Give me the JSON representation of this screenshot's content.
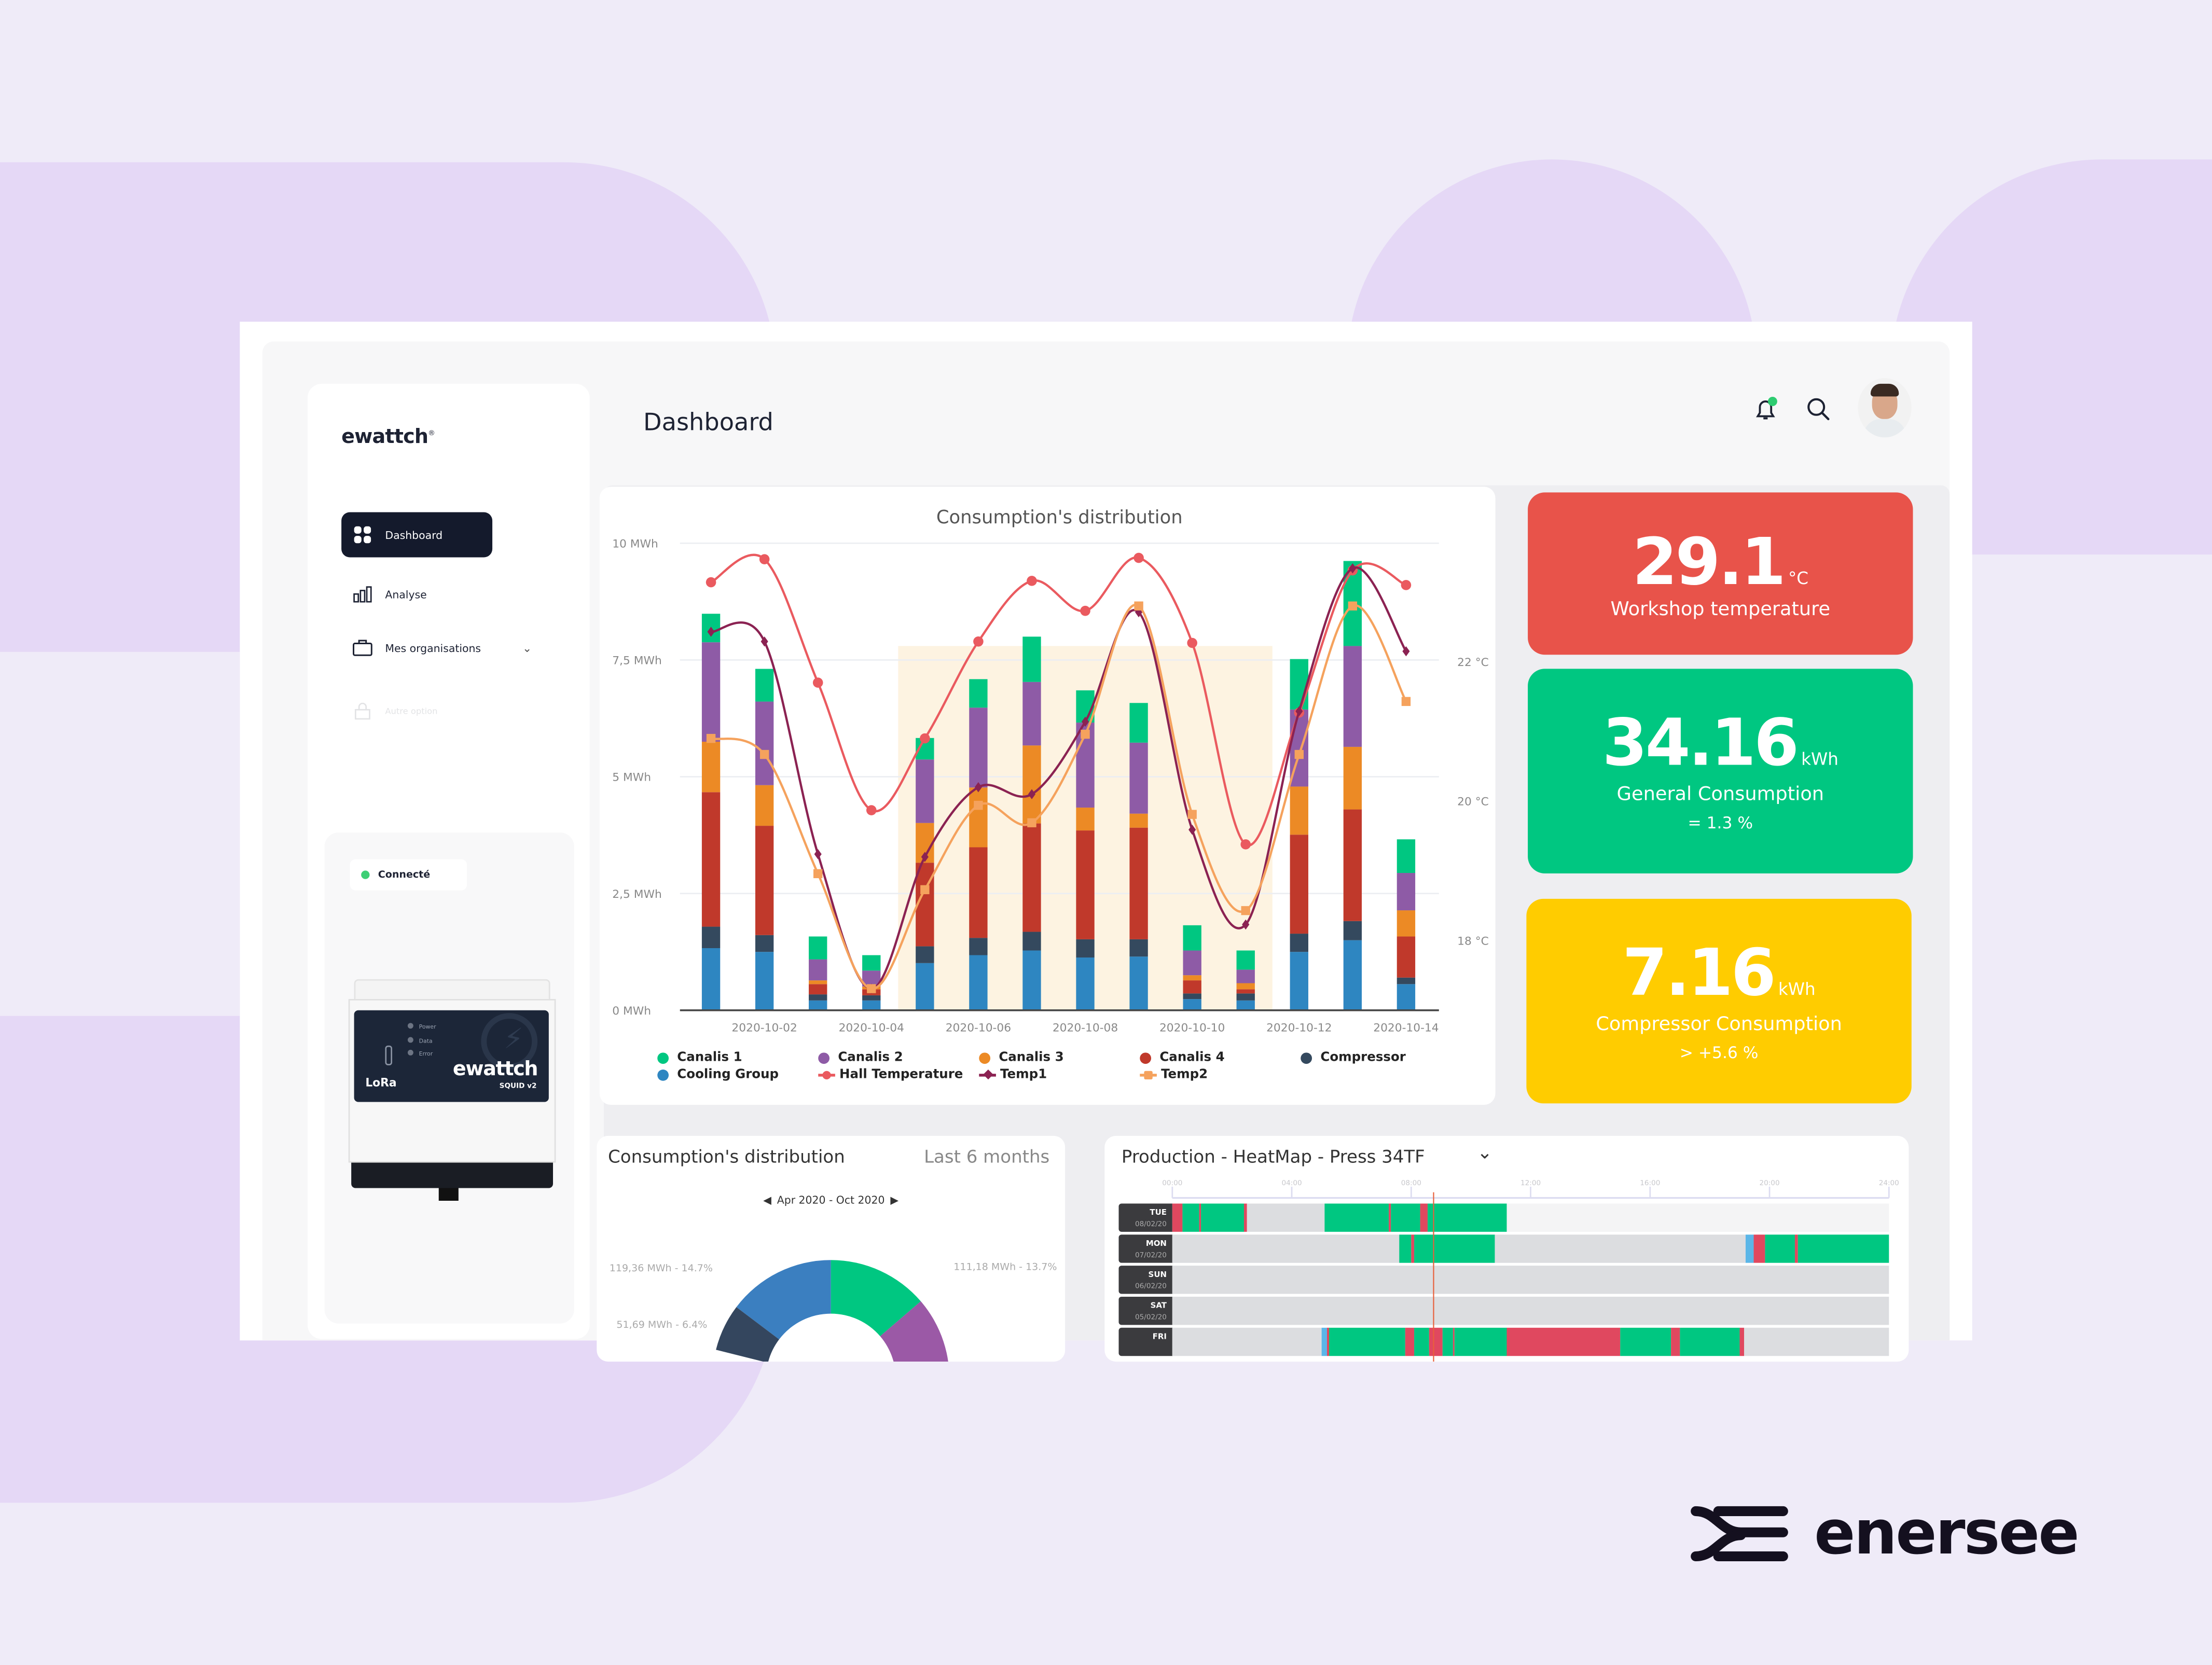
{
  "brand": {
    "name": "enersee"
  },
  "app": {
    "logo": "ewattch",
    "logo_mark": "®"
  },
  "header": {
    "title": "Dashboard",
    "icons": [
      "bell-icon",
      "search-icon",
      "avatar"
    ],
    "notification_dot_color": "#2ecc71"
  },
  "sidebar": {
    "items": [
      {
        "label": "Dashboard",
        "icon": "grid-icon",
        "active": true
      },
      {
        "label": "Analyse",
        "icon": "bar-chart-icon"
      },
      {
        "label": "Mes organisations",
        "icon": "briefcase-icon",
        "expandable": true
      },
      {
        "label": "Autre option",
        "icon": "lock-icon",
        "disabled": true
      }
    ],
    "status": "Connecté",
    "device": {
      "leds": [
        "Power",
        "Data",
        "Error"
      ],
      "brand": "ewattch",
      "model": "SQUID v2",
      "radio": "LoRa"
    }
  },
  "kpis": [
    {
      "value": "29.1",
      "unit": "°C",
      "label": "Workshop temperature",
      "change": "",
      "color": "#e8534a"
    },
    {
      "value": "34.16",
      "unit": "kWh",
      "label": "General Consumption",
      "change": "= 1.3 %",
      "color": "#00c781"
    },
    {
      "value": "7.16",
      "unit": "kWh",
      "label": "Compressor Consumption",
      "change": "> +5.6 %",
      "color": "#ffcc00"
    }
  ],
  "colors": {
    "canalis1": "#00c781",
    "canalis2": "#8e5ba6",
    "canalis3": "#ec8a25",
    "canalis4": "#c0392b",
    "compressor": "#34495e",
    "cooling": "#2e86c1",
    "hall": "#ea5a5f",
    "temp1": "#8b2252",
    "temp2": "#f5a25d",
    "highlight": "#fdf3e1"
  },
  "chart_data": [
    {
      "type": "bar",
      "stacked": true,
      "title": "Consumption's distribution",
      "x": [
        "2020-10-01",
        "2020-10-02",
        "2020-10-03",
        "2020-10-04",
        "2020-10-05",
        "2020-10-06",
        "2020-10-07",
        "2020-10-08",
        "2020-10-09",
        "2020-10-10",
        "2020-10-11",
        "2020-10-12",
        "2020-10-13",
        "2020-10-14"
      ],
      "x_tick_labels": [
        "2020-10-02",
        "2020-10-04",
        "2020-10-06",
        "2020-10-08",
        "2020-10-10",
        "2020-10-12",
        "2020-10-14"
      ],
      "ylim": [
        0,
        10
      ],
      "y_tick_labels": [
        "0 MWh",
        "2,5 MWh",
        "5 MWh",
        "7,5 MWh",
        "10 MWh"
      ],
      "y_ticks": [
        0,
        2.5,
        5,
        7.5,
        10
      ],
      "ylim_right": [
        17,
        23.7
      ],
      "y_right_ticks": [
        18,
        20,
        22
      ],
      "y_right_tick_labels": [
        "18 °C",
        "20 °C",
        "22 °C"
      ],
      "grid": true,
      "legend_position": "bottom",
      "highlight_range": [
        "2020-10-05",
        "2020-10-11"
      ],
      "series": [
        {
          "name": "Cooling Group",
          "key": "cooling",
          "values": [
            1.33,
            1.25,
            0.21,
            0.21,
            1.01,
            1.18,
            1.28,
            1.13,
            1.15,
            0.24,
            0.21,
            1.25,
            1.5,
            0.56
          ]
        },
        {
          "name": "Compressor",
          "key": "compressor",
          "values": [
            0.46,
            0.36,
            0.13,
            0.11,
            0.36,
            0.37,
            0.4,
            0.39,
            0.37,
            0.12,
            0.15,
            0.39,
            0.41,
            0.14
          ]
        },
        {
          "name": "Canalis 4",
          "key": "canalis4",
          "values": [
            2.88,
            2.34,
            0.22,
            0.13,
            1.79,
            1.94,
            2.32,
            2.33,
            2.39,
            0.28,
            0.09,
            2.12,
            2.39,
            0.88
          ]
        },
        {
          "name": "Canalis 3",
          "key": "canalis3",
          "values": [
            1.08,
            0.87,
            0.08,
            0.06,
            0.85,
            1.28,
            1.67,
            0.49,
            0.3,
            0.11,
            0.13,
            1.03,
            1.34,
            0.56
          ]
        },
        {
          "name": "Canalis 2",
          "key": "canalis2",
          "values": [
            2.13,
            1.79,
            0.45,
            0.34,
            1.36,
            1.71,
            1.36,
            1.82,
            1.52,
            0.53,
            0.29,
            1.65,
            2.16,
            0.8
          ]
        },
        {
          "name": "Canalis 1",
          "key": "canalis1",
          "values": [
            0.61,
            0.7,
            0.49,
            0.33,
            0.46,
            0.61,
            0.97,
            0.69,
            0.85,
            0.54,
            0.41,
            1.08,
            1.82,
            0.72
          ]
        }
      ],
      "line_series": [
        {
          "name": "Hall Temperature",
          "key": "hall",
          "marker": "circle",
          "axis": "right",
          "values": [
            23.14,
            23.47,
            21.7,
            19.87,
            20.9,
            22.29,
            23.16,
            22.73,
            23.49,
            22.27,
            19.38,
            21.27,
            23.31,
            23.1
          ]
        },
        {
          "name": "Temp1",
          "key": "temp1",
          "marker": "diamond",
          "axis": "right",
          "values": [
            22.43,
            22.29,
            19.24,
            17.31,
            19.2,
            20.2,
            20.1,
            21.14,
            22.71,
            19.59,
            18.23,
            21.29,
            23.34,
            22.15
          ]
        },
        {
          "name": "Temp2",
          "key": "temp2",
          "marker": "square",
          "axis": "right",
          "values": [
            20.9,
            20.67,
            18.96,
            17.31,
            18.73,
            19.94,
            19.69,
            20.96,
            22.8,
            19.81,
            18.43,
            20.67,
            22.8,
            21.43
          ]
        }
      ],
      "legend": [
        {
          "name": "Canalis 1",
          "key": "canalis1",
          "kind": "dot"
        },
        {
          "name": "Canalis 2",
          "key": "canalis2",
          "kind": "dot"
        },
        {
          "name": "Canalis 3",
          "key": "canalis3",
          "kind": "dot"
        },
        {
          "name": "Canalis 4",
          "key": "canalis4",
          "kind": "dot"
        },
        {
          "name": "Compressor",
          "key": "compressor",
          "kind": "dot"
        },
        {
          "name": "Cooling Group",
          "key": "cooling",
          "kind": "dot"
        },
        {
          "name": "Hall Temperature",
          "key": "hall",
          "kind": "line-circle"
        },
        {
          "name": "Temp1",
          "key": "temp1",
          "kind": "line-diamond"
        },
        {
          "name": "Temp2",
          "key": "temp2",
          "kind": "line-square"
        }
      ]
    },
    {
      "type": "pie",
      "donut": true,
      "title": "Consumption's distribution",
      "period_label": "Last 6 months",
      "range_label": "Apr 2020 - Oct 2020",
      "slices": [
        {
          "label": "119,36 MWh - 14.7%",
          "percent": 14.7,
          "color": "#3b7fc0",
          "direction": "counterclockwise"
        },
        {
          "label": "51,69 MWh - 6.4%",
          "percent": 6.4,
          "color": "#34465e",
          "direction": "counterclockwise"
        },
        {
          "label": "111,18 MWh - 13.7%",
          "percent": 13.7,
          "color": "#00c781",
          "direction": "clockwise"
        },
        {
          "label": "",
          "percent": null,
          "color": "#9b59a6",
          "direction": "clockwise"
        }
      ]
    },
    {
      "type": "heatmap",
      "title": "Production - HeatMap - Press 34TF",
      "x_tick_labels": [
        "00:00",
        "04:00",
        "08:00",
        "12:00",
        "16:00",
        "20:00",
        "24:00"
      ],
      "xlim_hours": [
        0,
        24
      ],
      "current_time_hours": 8.75,
      "state_colors": {
        "run": "#00c781",
        "stop": "#e0485f",
        "idle": "#dcdde0",
        "setup": "#5bb6e8",
        "none": "#f4f4f5"
      },
      "rows": [
        {
          "day": "TUE",
          "date": "08/02/20",
          "segments": [
            [
              "stop",
              0,
              0.34
            ],
            [
              "run",
              0.34,
              0.9
            ],
            [
              "stop",
              0.9,
              0.96
            ],
            [
              "run",
              0.96,
              2.4
            ],
            [
              "stop",
              2.4,
              2.5
            ],
            [
              "idle",
              2.5,
              5.1
            ],
            [
              "run",
              5.1,
              7.25
            ],
            [
              "stop",
              7.25,
              7.32
            ],
            [
              "run",
              7.32,
              8.3
            ],
            [
              "stop",
              8.3,
              8.55
            ],
            [
              "run",
              8.55,
              11.2
            ],
            [
              "none",
              11.2,
              24
            ]
          ]
        },
        {
          "day": "MON",
          "date": "07/02/20",
          "segments": [
            [
              "idle",
              0,
              7.6
            ],
            [
              "run",
              7.6,
              8.0
            ],
            [
              "stop",
              8.0,
              8.1
            ],
            [
              "run",
              8.1,
              10.8
            ],
            [
              "idle",
              10.8,
              19.2
            ],
            [
              "setup",
              19.2,
              19.47
            ],
            [
              "stop",
              19.47,
              19.85
            ],
            [
              "run",
              19.85,
              20.85
            ],
            [
              "stop",
              20.85,
              20.95
            ],
            [
              "run",
              20.95,
              24
            ]
          ]
        },
        {
          "day": "SUN",
          "date": "06/02/20",
          "segments": [
            [
              "idle",
              0,
              24
            ]
          ]
        },
        {
          "day": "SAT",
          "date": "05/02/20",
          "segments": [
            [
              "idle",
              0,
              24
            ]
          ]
        },
        {
          "day": "FRI",
          "date": "",
          "segments": [
            [
              "idle",
              0,
              5.0
            ],
            [
              "setup",
              5.0,
              5.18
            ],
            [
              "stop",
              5.18,
              5.25
            ],
            [
              "run",
              5.25,
              7.8
            ],
            [
              "stop",
              7.8,
              8.1
            ],
            [
              "run",
              8.1,
              8.6
            ],
            [
              "stop",
              8.6,
              9.05
            ],
            [
              "run",
              9.05,
              9.4
            ],
            [
              "stop",
              9.4,
              9.45
            ],
            [
              "run",
              9.45,
              11.2
            ],
            [
              "stop",
              11.2,
              15.0
            ],
            [
              "run",
              15.0,
              16.7
            ],
            [
              "stop",
              16.7,
              17.0
            ],
            [
              "run",
              17.0,
              19.0
            ],
            [
              "stop",
              19.0,
              19.15
            ],
            [
              "idle",
              19.15,
              24
            ]
          ]
        }
      ]
    }
  ]
}
